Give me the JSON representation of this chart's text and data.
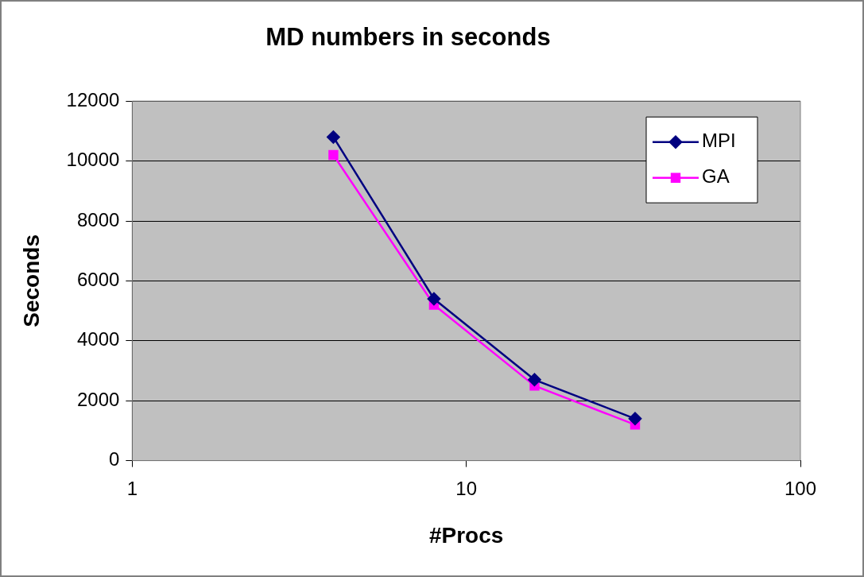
{
  "chart_data": {
    "type": "line",
    "title": "MD numbers in seconds",
    "xlabel": "#Procs",
    "ylabel": "Seconds",
    "log": "x",
    "xlim": [
      1,
      100
    ],
    "xticks": [
      1,
      10,
      100
    ],
    "ylim": [
      0,
      12000
    ],
    "yticks": [
      0,
      2000,
      4000,
      6000,
      8000,
      10000,
      12000
    ],
    "grid": "y",
    "legend": "top right",
    "series": [
      {
        "name": "MPI",
        "color": "#000080",
        "marker": "diamond",
        "x": [
          4,
          8,
          16,
          32
        ],
        "values": [
          10800,
          5400,
          2700,
          1400
        ]
      },
      {
        "name": "GA",
        "color": "#ff00ff",
        "marker": "square",
        "x": [
          4,
          8,
          16,
          32
        ],
        "values": [
          10200,
          5200,
          2500,
          1200
        ]
      }
    ]
  }
}
